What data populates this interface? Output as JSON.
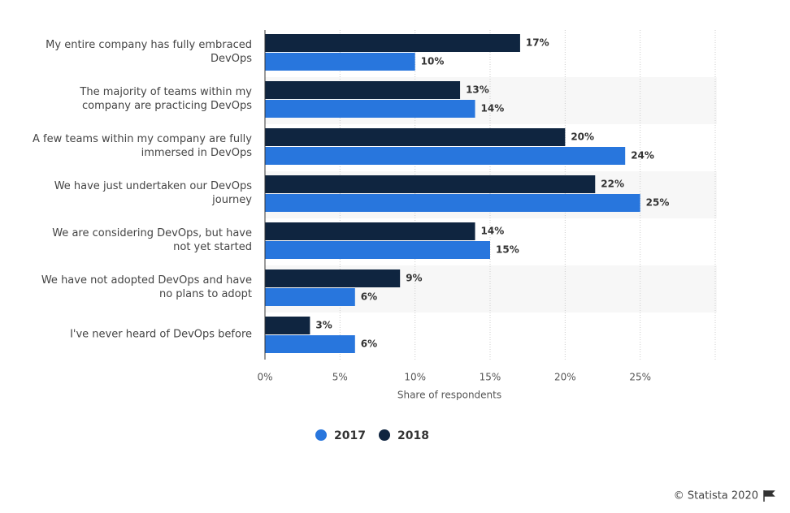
{
  "chart_data": {
    "type": "bar",
    "orientation": "horizontal",
    "categories": [
      "My entire company has fully embraced DevOps",
      "The majority of teams within my company are practicing DevOps",
      "A few teams within my company are fully immersed in DevOps",
      "We have just undertaken our DevOps journey",
      "We are considering DevOps, but have not yet started",
      "We have not adopted DevOps and have no plans to adopt",
      "I've never heard of DevOps before"
    ],
    "series": [
      {
        "name": "2018",
        "color": "#0f2540",
        "values": [
          17,
          13,
          20,
          22,
          14,
          9,
          3
        ],
        "value_labels": [
          "17%",
          "13%",
          "20%",
          "22%",
          "14%",
          "9%",
          "3%"
        ]
      },
      {
        "name": "2017",
        "color": "#2876dd",
        "values": [
          10,
          14,
          24,
          25,
          15,
          6,
          6
        ],
        "value_labels": [
          "10%",
          "14%",
          "24%",
          "25%",
          "15%",
          "6%",
          "6%"
        ]
      }
    ],
    "legend_order": [
      "2017",
      "2018"
    ],
    "xlabel": "Share of respondents",
    "xlim": [
      0,
      30
    ],
    "xticks": [
      {
        "value": 0,
        "label": "0%"
      },
      {
        "value": 5,
        "label": "5%"
      },
      {
        "value": 10,
        "label": "10%"
      },
      {
        "value": 15,
        "label": "15%"
      },
      {
        "value": 20,
        "label": "20%"
      },
      {
        "value": 25,
        "label": "25%"
      }
    ],
    "grid": true,
    "credit": "© Statista 2020"
  }
}
